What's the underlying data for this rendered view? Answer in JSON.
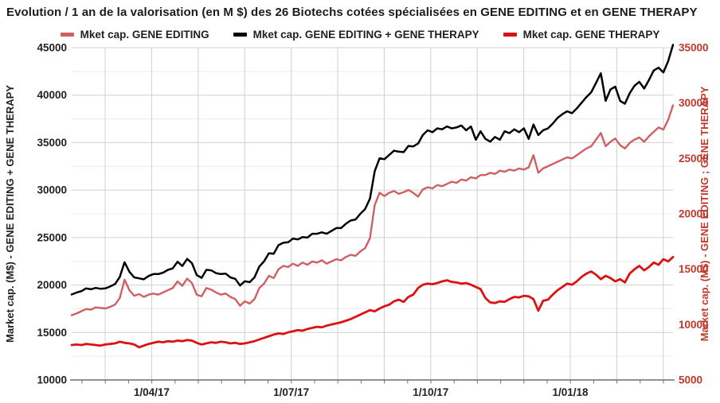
{
  "title": "Evolution / 1 an de la valorisation (en M $) des 26 Biotechs cotées spécialisées en GENE EDITING et en GENE THERAPY",
  "legend": {
    "items": [
      {
        "label": "Mket cap. GENE EDITING",
        "color": "#ce6062"
      },
      {
        "label": "Mket cap. GENE EDITING + GENE THERAPY",
        "color": "#000000"
      },
      {
        "label": "Mket cap. GENE THERAPY",
        "color": "#dc1212"
      }
    ]
  },
  "colors": {
    "major_grid": "#d0d0d0",
    "minor_grid": "#ececec",
    "axis_line": "#6e6e6e",
    "left_text": "#212121",
    "right_text": "#c0392b"
  },
  "chart_data": {
    "type": "line",
    "title": "Evolution / 1 an de la valorisation (en M $) des 26 Biotechs cotées spécialisées en GENE EDITING et en GENE THERAPY",
    "grid": true,
    "legend_position": "top",
    "x_axis": {
      "tick_labels": [
        "1/04/17",
        "1/07/17",
        "1/10/17",
        "1/01/18"
      ],
      "label_month_index": [
        1,
        4,
        7,
        10
      ],
      "month_gridline_count": 13,
      "minor_tick_count": 26
    },
    "left_axis": {
      "title": "Market cap. (M$) - GENE EDITING + GENE THERAPY",
      "ticks": [
        45000,
        40000,
        35000,
        30000,
        25000,
        20000,
        15000,
        10000
      ],
      "min": 10000,
      "max": 45000,
      "minor_step": 2500,
      "color": "#212121"
    },
    "right_axis": {
      "title": "Market cap. (M$) - GENE EDITING ; GENE THERAPY",
      "ticks": [
        35000,
        30000,
        25000,
        20000,
        15000,
        10000,
        5000
      ],
      "min": 5000,
      "max": 35000,
      "minor_step": 2500,
      "color": "#c0392b"
    },
    "series": [
      {
        "name": "Mket cap. GENE EDITING",
        "axis": "right",
        "color": "#ce6062",
        "width": 2.4,
        "values": [
          10850,
          11000,
          11200,
          11400,
          11350,
          11550,
          11500,
          11450,
          11600,
          11800,
          12400,
          14050,
          13100,
          12600,
          12750,
          12500,
          12700,
          12800,
          12700,
          12900,
          13100,
          13300,
          13900,
          13500,
          14150,
          13750,
          12700,
          12550,
          13300,
          13150,
          12900,
          12700,
          12800,
          12500,
          12300,
          11700,
          12100,
          11900,
          12300,
          13300,
          13700,
          14400,
          14200,
          15000,
          15300,
          15200,
          15500,
          15300,
          15600,
          15400,
          15700,
          15600,
          15800,
          15500,
          15700,
          15900,
          15800,
          16100,
          16300,
          16200,
          16600,
          16900,
          17800,
          20800,
          21900,
          21600,
          21900,
          22050,
          21800,
          21950,
          22150,
          21900,
          21550,
          22200,
          22400,
          22300,
          22600,
          22500,
          22700,
          22900,
          22800,
          23100,
          23000,
          23300,
          23200,
          23500,
          23500,
          23700,
          23600,
          23900,
          23800,
          24000,
          23900,
          24100,
          24000,
          24200,
          25300,
          23700,
          24100,
          24300,
          24500,
          24700,
          24900,
          25100,
          25000,
          25300,
          25600,
          25900,
          26100,
          26700,
          27300,
          26100,
          26500,
          26800,
          26200,
          25900,
          26400,
          26700,
          26900,
          26500,
          27000,
          27400,
          27800,
          27600,
          28500,
          29800
        ]
      },
      {
        "name": "Mket cap. GENE EDITING + GENE THERAPY",
        "axis": "left",
        "color": "#000000",
        "width": 2.5,
        "values": [
          19000,
          19200,
          19350,
          19650,
          19550,
          19700,
          19600,
          19650,
          19850,
          20100,
          20850,
          22400,
          21400,
          20800,
          20700,
          20600,
          20950,
          21150,
          21150,
          21300,
          21600,
          21750,
          22450,
          22000,
          22750,
          22300,
          21050,
          20750,
          21600,
          21550,
          21250,
          21150,
          21200,
          20800,
          20650,
          19950,
          20400,
          20300,
          20800,
          21950,
          22500,
          23350,
          23300,
          24200,
          24450,
          24500,
          24900,
          24800,
          25050,
          25000,
          25400,
          25400,
          25550,
          25400,
          25700,
          26000,
          26000,
          26450,
          26800,
          26900,
          27500,
          28000,
          29100,
          32000,
          33350,
          33250,
          33700,
          34150,
          34050,
          34000,
          34650,
          34600,
          34900,
          35800,
          36300,
          36100,
          36500,
          36400,
          36700,
          36500,
          36600,
          36800,
          36300,
          36700,
          35300,
          36200,
          35400,
          35100,
          35600,
          35300,
          36200,
          36000,
          36400,
          36100,
          36500,
          35400,
          36900,
          35800,
          36300,
          36500,
          37000,
          37600,
          38000,
          38300,
          38100,
          38600,
          39200,
          39800,
          40300,
          41300,
          42300,
          39400,
          40600,
          40900,
          39400,
          39100,
          40200,
          41000,
          41400,
          40700,
          41600,
          42600,
          42900,
          42400,
          43600,
          45300
        ]
      },
      {
        "name": "Mket cap. GENE THERAPY",
        "axis": "right",
        "color": "#dc1212",
        "width": 2.8,
        "values": [
          8150,
          8200,
          8150,
          8250,
          8200,
          8150,
          8100,
          8200,
          8250,
          8300,
          8450,
          8350,
          8300,
          8200,
          7950,
          8100,
          8250,
          8350,
          8450,
          8400,
          8500,
          8450,
          8550,
          8500,
          8600,
          8550,
          8350,
          8200,
          8300,
          8400,
          8350,
          8450,
          8400,
          8300,
          8350,
          8250,
          8300,
          8400,
          8500,
          8650,
          8800,
          8950,
          9100,
          9200,
          9150,
          9300,
          9400,
          9500,
          9450,
          9600,
          9700,
          9800,
          9750,
          9900,
          10000,
          10100,
          10200,
          10350,
          10500,
          10700,
          10900,
          11100,
          11300,
          11200,
          11450,
          11650,
          11800,
          12100,
          12250,
          12050,
          12500,
          12700,
          13300,
          13600,
          13700,
          13650,
          13750,
          13900,
          14000,
          13850,
          13800,
          13700,
          13750,
          13600,
          13400,
          13200,
          12400,
          12000,
          11950,
          12100,
          12050,
          12300,
          12500,
          12450,
          12600,
          12550,
          12300,
          11250,
          12150,
          12250,
          12700,
          13100,
          13400,
          13700,
          13600,
          13900,
          14300,
          14600,
          14800,
          14500,
          14100,
          14400,
          14200,
          13900,
          14100,
          13800,
          14600,
          15000,
          15300,
          14900,
          15200,
          15600,
          15400,
          15900,
          15700,
          16100
        ]
      }
    ]
  }
}
